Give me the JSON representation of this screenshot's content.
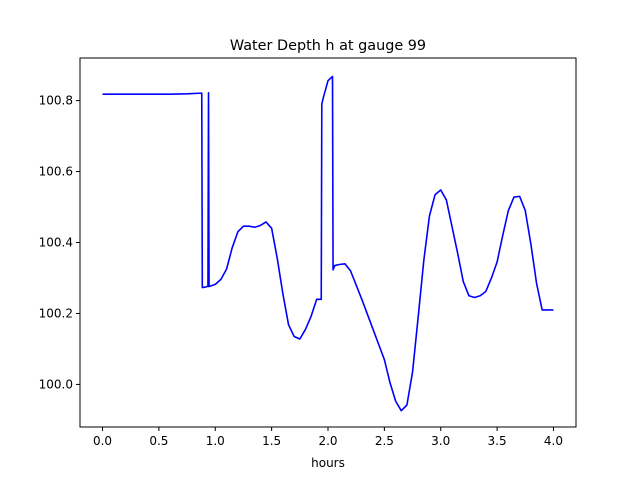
{
  "chart_data": {
    "type": "line",
    "title": "Water Depth h at gauge 99",
    "xlabel": "hours",
    "ylabel": "",
    "xlim": [
      -0.2,
      4.2
    ],
    "ylim": [
      99.88,
      100.92
    ],
    "xticks": [
      0.0,
      0.5,
      1.0,
      1.5,
      2.0,
      2.5,
      3.0,
      3.5,
      4.0
    ],
    "xtick_labels": [
      "0.0",
      "0.5",
      "1.0",
      "1.5",
      "2.0",
      "2.5",
      "3.0",
      "3.5",
      "4.0"
    ],
    "yticks": [
      100.0,
      100.2,
      100.4,
      100.6,
      100.8
    ],
    "ytick_labels": [
      "100.0",
      "100.2",
      "100.4",
      "100.6",
      "100.8"
    ],
    "grid": false,
    "line_color": "#0000ff",
    "series": [
      {
        "name": "",
        "x": [
          0.0,
          0.2,
          0.4,
          0.6,
          0.75,
          0.88,
          0.885,
          0.92,
          0.925,
          0.935,
          0.94,
          0.945,
          1.0,
          1.05,
          1.1,
          1.15,
          1.2,
          1.25,
          1.3,
          1.35,
          1.4,
          1.45,
          1.5,
          1.55,
          1.6,
          1.65,
          1.7,
          1.75,
          1.8,
          1.85,
          1.9,
          1.94,
          1.945,
          1.96,
          2.0,
          2.04,
          2.045,
          2.06,
          2.1,
          2.15,
          2.2,
          2.3,
          2.4,
          2.5,
          2.55,
          2.6,
          2.65,
          2.7,
          2.75,
          2.8,
          2.85,
          2.9,
          2.95,
          3.0,
          3.05,
          3.1,
          3.15,
          3.2,
          3.25,
          3.3,
          3.35,
          3.4,
          3.45,
          3.5,
          3.55,
          3.6,
          3.65,
          3.7,
          3.75,
          3.8,
          3.85,
          3.9,
          3.95,
          4.0
        ],
        "y": [
          100.818,
          100.818,
          100.818,
          100.818,
          100.819,
          100.821,
          100.273,
          100.275,
          100.276,
          100.276,
          100.822,
          100.276,
          100.282,
          100.296,
          100.325,
          100.385,
          100.43,
          100.446,
          100.446,
          100.443,
          100.448,
          100.458,
          100.44,
          100.355,
          100.255,
          100.168,
          100.135,
          100.128,
          100.155,
          100.192,
          100.24,
          100.24,
          100.79,
          100.81,
          100.856,
          100.868,
          100.323,
          100.335,
          100.338,
          100.34,
          100.32,
          100.24,
          100.155,
          100.07,
          100.005,
          99.953,
          99.926,
          99.942,
          100.035,
          100.19,
          100.35,
          100.475,
          100.535,
          100.548,
          100.52,
          100.445,
          100.37,
          100.29,
          100.25,
          100.245,
          100.25,
          100.262,
          100.3,
          100.345,
          100.42,
          100.49,
          100.528,
          100.53,
          100.49,
          100.395,
          100.285,
          100.21,
          100.21,
          100.21
        ]
      }
    ]
  }
}
